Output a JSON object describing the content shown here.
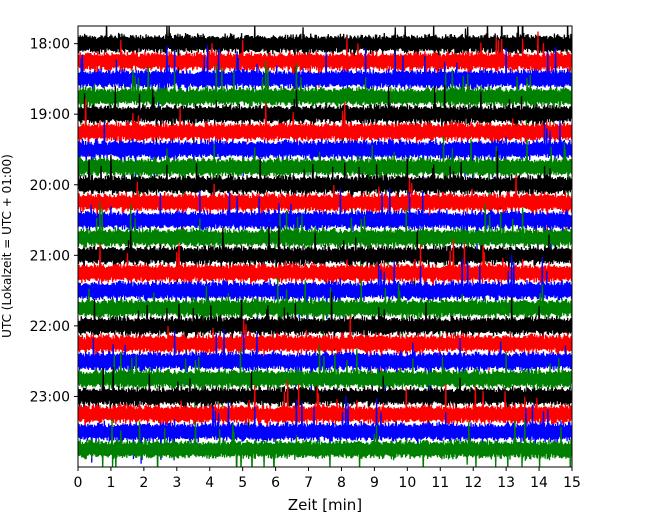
{
  "chart_data": {
    "type": "line",
    "title": "",
    "xlabel": "Zeit  [min]",
    "ylabel": "UTC (Lokalzeit = UTC + 01:00)",
    "xlim": [
      0,
      15
    ],
    "ylim": [
      "17:45",
      "24:00"
    ],
    "x_ticks": [
      "0",
      "1",
      "2",
      "3",
      "4",
      "5",
      "6",
      "7",
      "8",
      "9",
      "10",
      "11",
      "12",
      "13",
      "14",
      "15"
    ],
    "y_ticks": [
      "18:00",
      "19:00",
      "20:00",
      "21:00",
      "22:00",
      "23:00"
    ],
    "trace_interval_min": 15,
    "traces": [
      {
        "start_utc": "18:00",
        "color": "#000000"
      },
      {
        "start_utc": "18:15",
        "color": "#ff0000"
      },
      {
        "start_utc": "18:30",
        "color": "#0000ff"
      },
      {
        "start_utc": "18:45",
        "color": "#008000"
      },
      {
        "start_utc": "19:00",
        "color": "#000000"
      },
      {
        "start_utc": "19:15",
        "color": "#ff0000"
      },
      {
        "start_utc": "19:30",
        "color": "#0000ff"
      },
      {
        "start_utc": "19:45",
        "color": "#008000"
      },
      {
        "start_utc": "20:00",
        "color": "#000000"
      },
      {
        "start_utc": "20:15",
        "color": "#ff0000"
      },
      {
        "start_utc": "20:30",
        "color": "#0000ff"
      },
      {
        "start_utc": "20:45",
        "color": "#008000"
      },
      {
        "start_utc": "21:00",
        "color": "#000000"
      },
      {
        "start_utc": "21:15",
        "color": "#ff0000"
      },
      {
        "start_utc": "21:30",
        "color": "#0000ff"
      },
      {
        "start_utc": "21:45",
        "color": "#008000"
      },
      {
        "start_utc": "22:00",
        "color": "#000000"
      },
      {
        "start_utc": "22:15",
        "color": "#ff0000"
      },
      {
        "start_utc": "22:30",
        "color": "#0000ff"
      },
      {
        "start_utc": "22:45",
        "color": "#008000"
      },
      {
        "start_utc": "23:00",
        "color": "#000000"
      },
      {
        "start_utc": "23:15",
        "color": "#ff0000"
      },
      {
        "start_utc": "23:30",
        "color": "#0000ff"
      },
      {
        "start_utc": "23:45",
        "color": "#008000"
      }
    ],
    "grid": false,
    "legend": "none"
  }
}
